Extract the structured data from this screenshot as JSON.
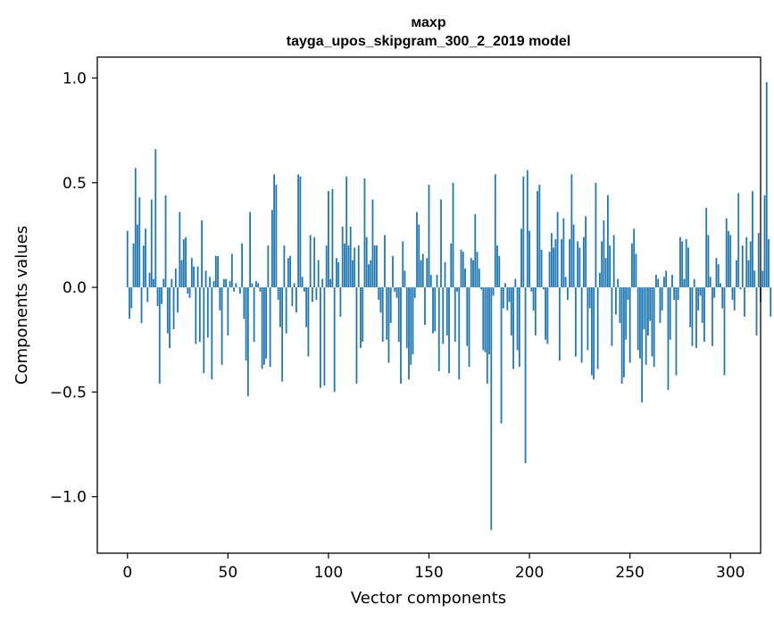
{
  "chart_data": {
    "type": "bar",
    "title": "махр",
    "subtitle": "tayga_upos_skipgram_300_2_2019 model",
    "xlabel": "Vector components",
    "ylabel": "Components values",
    "xlim": [
      -15,
      315
    ],
    "ylim": [
      -1.27,
      1.1
    ],
    "xticks": [
      0,
      50,
      100,
      150,
      200,
      250,
      300
    ],
    "yticks": [
      1.0,
      0.5,
      0.0,
      -0.5,
      -1.0
    ],
    "xtick_labels": [
      "0",
      "50",
      "100",
      "150",
      "200",
      "250",
      "300"
    ],
    "ytick_labels": [
      "1.0",
      "0.5",
      "0.0",
      "−0.5",
      "−1.0"
    ],
    "bar_color": "#1f77b4",
    "values": [
      0.27,
      -0.15,
      -0.1,
      0.21,
      0.57,
      0.3,
      0.43,
      -0.17,
      0.2,
      0.28,
      -0.07,
      0.07,
      0.42,
      0.04,
      0.66,
      -0.09,
      -0.46,
      -0.08,
      0.04,
      0.44,
      -0.22,
      -0.29,
      0.04,
      -0.2,
      0.09,
      -0.12,
      0.36,
      0.13,
      0.23,
      0.24,
      -0.03,
      -0.05,
      0.14,
      0.1,
      -0.27,
      0.1,
      -0.26,
      0.32,
      -0.41,
      0.08,
      -0.24,
      0.05,
      -0.44,
      0.03,
      0.15,
      0.15,
      -0.11,
      -0.37,
      0.04,
      0.04,
      -0.23,
      0.03,
      0.16,
      -0.02,
      0.02,
      0.0,
      -0.03,
      0.21,
      -0.15,
      -0.35,
      -0.52,
      0.36,
      0.02,
      -0.26,
      0.03,
      0.02,
      -0.02,
      -0.39,
      -0.37,
      -0.34,
      0.2,
      -0.38,
      0.37,
      0.54,
      0.49,
      -0.06,
      -0.19,
      -0.45,
      0.2,
      -0.22,
      0.14,
      0.15,
      -0.09,
      0.02,
      -0.12,
      0.54,
      0.53,
      0.05,
      -0.02,
      -0.19,
      -0.33,
      0.25,
      -0.07,
      0.24,
      -0.06,
      0.13,
      -0.48,
      0.04,
      -0.47,
      0.2,
      0.46,
      0.04,
      0.47,
      -0.5,
      0.14,
      0.12,
      -0.14,
      0.29,
      0.21,
      0.53,
      0.2,
      0.29,
      0.13,
      0.19,
      -0.46,
      0.2,
      -0.29,
      -0.26,
      0.52,
      0.24,
      0.11,
      0.13,
      0.42,
      0.2,
      0.2,
      -0.06,
      -0.12,
      -0.26,
      0.25,
      -0.25,
      -0.36,
      -0.17,
      0.15,
      -0.02,
      -0.05,
      -0.26,
      -0.46,
      0.22,
      0.08,
      -0.29,
      -0.44,
      -0.37,
      -0.32,
      -0.05,
      0.36,
      0.3,
      0.13,
      0.16,
      -0.18,
      0.14,
      0.49,
      0.06,
      -0.22,
      -0.21,
      0.06,
      -0.4,
      0.42,
      -0.27,
      0.12,
      -0.23,
      -0.41,
      0.21,
      0.5,
      -0.26,
      -0.02,
      -0.44,
      0.18,
      0.17,
      0.09,
      -0.28,
      -0.38,
      0.14,
      0.13,
      0.35,
      0.17,
      0.09,
      -0.01,
      -0.3,
      -0.31,
      -0.46,
      -0.32,
      -1.16,
      -0.04,
      0.54,
      0.2,
      0.15,
      -0.65,
      -0.1,
      0.02,
      -0.11,
      -0.07,
      -0.23,
      -0.39,
      0.04,
      -0.3,
      -0.38,
      0.28,
      0.53,
      -0.84,
      0.56,
      0.27,
      -0.02,
      -0.11,
      -0.23,
      0.46,
      0.49,
      0.18,
      -0.01,
      -0.25,
      -0.27,
      0.17,
      0.26,
      0.19,
      0.23,
      0.36,
      -0.35,
      0.23,
      0.33,
      0.05,
      -0.06,
      0.23,
      0.54,
      0.3,
      -0.33,
      0.22,
      0.19,
      -0.36,
      0.24,
      0.34,
      -0.3,
      -0.1,
      -0.42,
      -0.44,
      0.5,
      -0.39,
      0.07,
      0.22,
      0.32,
      0.14,
      0.44,
      0.2,
      -0.28,
      0.25,
      -0.13,
      0.04,
      -0.17,
      -0.46,
      -0.43,
      -0.25,
      -0.06,
      -0.36,
      0.21,
      0.28,
      0.16,
      -0.3,
      -0.34,
      -0.55,
      -0.2,
      -0.37,
      -0.23,
      -0.16,
      -0.33,
      -0.38,
      0.06,
      0.04,
      -0.17,
      -0.11,
      0.05,
      0.08,
      -0.49,
      -0.25,
      0.06,
      -0.06,
      -0.42,
      -0.06,
      0.24,
      0.22,
      0.04,
      0.23,
      0.19,
      -0.19,
      -0.28,
      0.04,
      -0.29,
      -0.11,
      -0.04,
      -0.17,
      -0.26,
      0.38,
      0.25,
      0.05,
      -0.28,
      -0.05,
      0.14,
      0.11,
      0.02,
      -0.1,
      -0.42,
      0.33,
      0.27,
      0.25,
      -0.06,
      -0.11,
      0.13,
      0.45,
      -0.01,
      0.2,
      -0.14,
      0.24,
      0.13,
      0.22,
      0.46,
      0.08,
      -0.23,
      0.26,
      -0.07,
      0.08,
      0.44,
      0.98,
      0.23,
      -0.14
    ]
  }
}
